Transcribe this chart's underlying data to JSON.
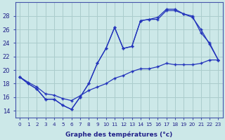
{
  "xlabel": "Graphe des températures (°c)",
  "xlim": [
    -0.5,
    23.5
  ],
  "ylim": [
    13,
    30
  ],
  "yticks": [
    14,
    16,
    18,
    20,
    22,
    24,
    26,
    28
  ],
  "xticks": [
    0,
    1,
    2,
    3,
    4,
    5,
    6,
    7,
    8,
    9,
    10,
    11,
    12,
    13,
    14,
    15,
    16,
    17,
    18,
    19,
    20,
    21,
    22,
    23
  ],
  "bg_color": "#cce8e8",
  "grid_color": "#aacccc",
  "line_color": "#2233bb",
  "line1_x": [
    0,
    1,
    2,
    3,
    4,
    5,
    6,
    7,
    8,
    9,
    10,
    11,
    12,
    13,
    14,
    15,
    16,
    17,
    18,
    19,
    20,
    21,
    22,
    23
  ],
  "line1_y": [
    19.0,
    18.0,
    17.2,
    15.7,
    15.7,
    14.8,
    14.2,
    16.0,
    18.0,
    21.0,
    23.2,
    26.3,
    23.2,
    23.5,
    27.3,
    27.5,
    27.8,
    29.0,
    29.0,
    28.3,
    27.8,
    26.0,
    23.8,
    21.5
  ],
  "line2_x": [
    0,
    1,
    2,
    3,
    4,
    5,
    6,
    7,
    8,
    9,
    10,
    11,
    12,
    13,
    14,
    15,
    16,
    17,
    18,
    19,
    20,
    21,
    22,
    23
  ],
  "line2_y": [
    19.0,
    18.0,
    17.2,
    15.7,
    15.7,
    14.8,
    14.2,
    16.0,
    18.0,
    21.0,
    23.2,
    26.3,
    23.2,
    23.5,
    27.3,
    27.5,
    27.5,
    28.8,
    28.8,
    28.3,
    28.0,
    25.5,
    24.0,
    21.5
  ],
  "line3_x": [
    0,
    1,
    2,
    3,
    4,
    5,
    6,
    7,
    8,
    9,
    10,
    11,
    12,
    13,
    14,
    15,
    16,
    17,
    18,
    19,
    20,
    21,
    22,
    23
  ],
  "line3_y": [
    19.0,
    18.2,
    17.5,
    16.5,
    16.3,
    15.8,
    15.5,
    16.2,
    17.0,
    17.5,
    18.0,
    18.8,
    19.2,
    19.8,
    20.2,
    20.2,
    20.5,
    21.0,
    20.8,
    20.8,
    20.8,
    21.0,
    21.5,
    21.5
  ]
}
